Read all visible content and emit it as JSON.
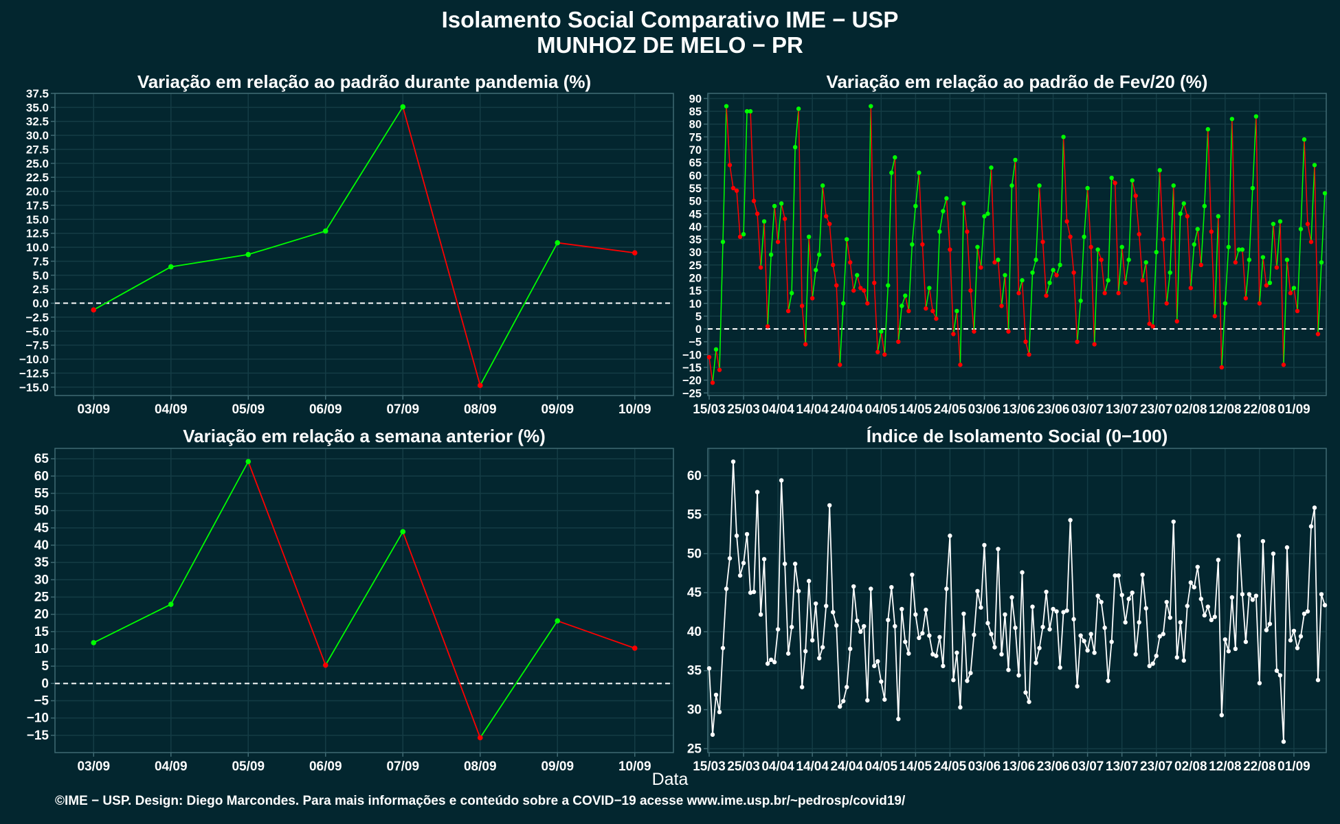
{
  "header": {
    "title": "Isolamento Social Comparativo IME − USP",
    "subtitle": "MUNHOZ DE MELO − PR"
  },
  "footer": {
    "xlabel": "Data",
    "credits": "©IME − USP. Design: Diego Marcondes. Para mais informações e conteúdo sobre a COVID−19 acesse www.ime.usp.br/~pedrosp/covid19/"
  },
  "colors": {
    "background": "#03262f",
    "up": "#00ff00",
    "down": "#ff0000",
    "index_line": "#ffffff",
    "grid": "#143c45",
    "axis": "#3f6a73"
  },
  "chart_data": [
    {
      "type": "line",
      "title": "Variação em relação ao padrão durante pandemia (%)",
      "categories": [
        "03/09",
        "04/09",
        "05/09",
        "06/09",
        "07/09",
        "08/09",
        "09/09",
        "10/09"
      ],
      "values": [
        -1.2,
        6.5,
        8.7,
        12.9,
        35.1,
        -14.7,
        10.8,
        9.0
      ],
      "ylim": [
        -16.5,
        37.5
      ],
      "yticks": [
        -15,
        -12.5,
        -10,
        -7.5,
        -5,
        -2.5,
        0,
        2.5,
        5,
        7.5,
        10,
        12.5,
        15,
        17.5,
        20,
        22.5,
        25,
        27.5,
        30,
        32.5,
        35,
        37.5
      ],
      "ytick_labels": [
        "−15.0",
        "−12.5",
        "−10.0",
        "−7.5",
        "−5.0",
        "−2.5",
        "0.0",
        "2.5",
        "5.0",
        "7.5",
        "10.0",
        "12.5",
        "15.0",
        "17.5",
        "20.0",
        "22.5",
        "25.0",
        "27.5",
        "30.0",
        "32.5",
        "35.0",
        "37.5"
      ],
      "reference_line": 0,
      "grid": true
    },
    {
      "type": "line",
      "title": "Variação em relação ao padrão de Fev/20 (%)",
      "start_date": "2020-03-15",
      "x_tick_labels": [
        "15/03",
        "25/03",
        "04/04",
        "14/04",
        "24/04",
        "04/05",
        "14/05",
        "24/05",
        "03/06",
        "13/06",
        "23/06",
        "03/07",
        "13/07",
        "23/07",
        "02/08",
        "12/08",
        "22/08",
        "01/09"
      ],
      "values": [
        -11,
        -21,
        -8,
        -16,
        34,
        87,
        64,
        55,
        54,
        36,
        37,
        85,
        85,
        50,
        45,
        24,
        42,
        1,
        29,
        48,
        34,
        49,
        43,
        7,
        14,
        71,
        86,
        9,
        -6,
        36,
        12,
        23,
        29,
        56,
        44,
        41,
        25,
        17,
        -14,
        10,
        35,
        26,
        15,
        21,
        16,
        15,
        10,
        87,
        18,
        -9,
        -1,
        -10,
        17,
        61,
        67,
        -5,
        9,
        13,
        7,
        33,
        48,
        61,
        33,
        8,
        16,
        7,
        4,
        38,
        46,
        51,
        31,
        -2,
        7,
        -14,
        49,
        38,
        15,
        -1,
        32,
        24,
        44,
        45,
        63,
        26,
        27,
        9,
        21,
        -1,
        56,
        66,
        14,
        19,
        -5,
        -10,
        22,
        27,
        56,
        34,
        13,
        18,
        23,
        21,
        25,
        75,
        42,
        36,
        22,
        -5,
        11,
        36,
        55,
        32,
        -6,
        31,
        27,
        14,
        19,
        59,
        57,
        14,
        32,
        18,
        27,
        58,
        52,
        37,
        19,
        26,
        2,
        1,
        30,
        62,
        35,
        10,
        22,
        56,
        3,
        45,
        49,
        44,
        16,
        33,
        39,
        25,
        48,
        78,
        38,
        5,
        44,
        -15,
        10,
        32,
        82,
        26,
        31,
        31,
        12,
        27,
        55,
        83,
        10,
        28,
        17,
        18,
        41,
        24,
        42,
        -14,
        27,
        14,
        16,
        7,
        39,
        74,
        41,
        34,
        64,
        -2,
        26,
        53
      ],
      "ylim": [
        -26,
        92
      ],
      "yticks": [
        -25,
        -20,
        -15,
        -10,
        -5,
        0,
        5,
        10,
        15,
        20,
        25,
        30,
        35,
        40,
        45,
        50,
        55,
        60,
        65,
        70,
        75,
        80,
        85,
        90
      ],
      "ytick_labels": [
        "−25",
        "−20",
        "−15",
        "−10",
        "−5",
        "0",
        "5",
        "10",
        "15",
        "20",
        "25",
        "30",
        "35",
        "40",
        "45",
        "50",
        "55",
        "60",
        "65",
        "70",
        "75",
        "80",
        "85",
        "90"
      ],
      "reference_line": 0,
      "grid": true
    },
    {
      "type": "line",
      "title": "Variação em relação a semana anterior (%)",
      "categories": [
        "03/09",
        "04/09",
        "05/09",
        "06/09",
        "07/09",
        "08/09",
        "09/09",
        "10/09"
      ],
      "values": [
        11.8,
        22.9,
        64.2,
        5.3,
        43.9,
        -15.7,
        18.1,
        10.2
      ],
      "ylim": [
        -20,
        68
      ],
      "yticks": [
        -15,
        -10,
        -5,
        0,
        5,
        10,
        15,
        20,
        25,
        30,
        35,
        40,
        45,
        50,
        55,
        60,
        65
      ],
      "ytick_labels": [
        "−15",
        "−10",
        "−5",
        "0",
        "5",
        "10",
        "15",
        "20",
        "25",
        "30",
        "35",
        "40",
        "45",
        "50",
        "55",
        "60",
        "65"
      ],
      "reference_line": 0,
      "grid": true
    },
    {
      "type": "line",
      "title": "Índice de Isolamento Social (0−100)",
      "start_date": "2020-03-15",
      "x_tick_labels": [
        "15/03",
        "25/03",
        "04/04",
        "14/04",
        "24/04",
        "04/05",
        "14/05",
        "24/05",
        "03/06",
        "13/06",
        "23/06",
        "03/07",
        "13/07",
        "23/07",
        "02/08",
        "12/08",
        "22/08",
        "01/09"
      ],
      "values": [
        35.3,
        26.8,
        31.9,
        29.7,
        37.9,
        45.5,
        49.4,
        61.8,
        52.3,
        47.2,
        48.8,
        52.5,
        45.0,
        45.1,
        57.9,
        42.2,
        49.3,
        35.9,
        36.4,
        36.1,
        40.3,
        59.4,
        48.7,
        37.2,
        40.6,
        48.7,
        45.2,
        32.9,
        37.5,
        46.5,
        38.9,
        43.6,
        36.6,
        38.0,
        43.3,
        56.2,
        42.5,
        40.8,
        30.4,
        31.1,
        32.9,
        37.8,
        45.8,
        41.4,
        40.0,
        40.7,
        31.2,
        45.5,
        35.6,
        36.2,
        33.6,
        31.3,
        41.5,
        45.7,
        40.7,
        28.8,
        42.9,
        38.7,
        37.2,
        47.3,
        42.2,
        39.2,
        39.8,
        42.8,
        39.5,
        37.1,
        36.9,
        39.3,
        35.6,
        45.5,
        52.3,
        33.8,
        37.3,
        30.3,
        42.3,
        33.7,
        34.7,
        39.6,
        45.2,
        43.1,
        51.1,
        41.1,
        39.7,
        38.0,
        50.6,
        37.1,
        42.2,
        35.1,
        44.4,
        40.5,
        34.4,
        47.6,
        32.2,
        31.0,
        43.2,
        36.0,
        37.9,
        40.6,
        45.1,
        40.3,
        42.9,
        42.6,
        35.4,
        42.5,
        42.7,
        54.3,
        41.6,
        33.0,
        39.5,
        38.8,
        37.6,
        39.7,
        37.3,
        44.6,
        43.8,
        40.5,
        33.7,
        38.7,
        47.2,
        47.2,
        44.7,
        41.2,
        44.2,
        45.0,
        37.1,
        41.2,
        47.3,
        43.0,
        35.6,
        35.9,
        36.9,
        39.4,
        39.7,
        43.8,
        41.8,
        54.1,
        36.7,
        41.2,
        36.3,
        43.3,
        46.3,
        45.7,
        48.3,
        44.2,
        42.1,
        43.2,
        41.5,
        41.9,
        49.2,
        29.3,
        39.0,
        37.5,
        44.4,
        37.8,
        52.3,
        44.8,
        38.7,
        44.8,
        44.1,
        44.6,
        33.4,
        51.6,
        40.2,
        41.0,
        50.0,
        35.0,
        34.4,
        25.9,
        50.8,
        38.9,
        40.1,
        37.9,
        39.4,
        42.3,
        42.6,
        53.5,
        55.9,
        33.8,
        44.8,
        43.4
      ],
      "ylim": [
        24.5,
        63.5
      ],
      "yticks": [
        25,
        30,
        35,
        40,
        45,
        50,
        55,
        60
      ],
      "ytick_labels": [
        "25",
        "30",
        "35",
        "40",
        "45",
        "50",
        "55",
        "60"
      ],
      "grid": true
    }
  ]
}
